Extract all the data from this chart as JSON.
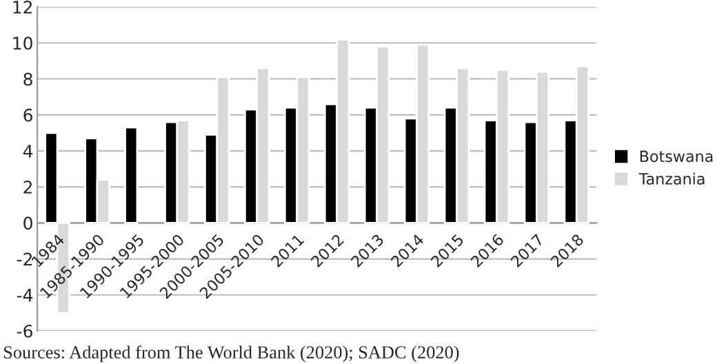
{
  "chart_data": {
    "type": "bar",
    "categories": [
      "1984",
      "1985-1990",
      "1990-1995",
      "1995-2000",
      "2000-2005",
      "2005-2010",
      "2011",
      "2012",
      "2013",
      "2014",
      "2015",
      "2016",
      "2017",
      "2018"
    ],
    "series": [
      {
        "name": "Botswana",
        "color": "#000000",
        "values": [
          5.0,
          4.7,
          5.3,
          5.6,
          4.9,
          6.3,
          6.4,
          6.6,
          6.4,
          5.8,
          6.4,
          5.7,
          5.6,
          5.7
        ]
      },
      {
        "name": "Tanzania",
        "color": "#d9d9d9",
        "values": [
          -5.0,
          2.4,
          null,
          5.7,
          8.1,
          8.6,
          8.1,
          10.2,
          9.8,
          9.9,
          8.6,
          8.5,
          8.4,
          8.7
        ]
      }
    ],
    "ylim": [
      -6,
      12
    ],
    "yticks": [
      -6,
      -4,
      -2,
      0,
      2,
      4,
      6,
      8,
      10,
      12
    ],
    "grid": "y",
    "legend": "right",
    "annotations": [
      "Sources: Adapted from The World Bank (2020); SADC (2020)"
    ]
  }
}
